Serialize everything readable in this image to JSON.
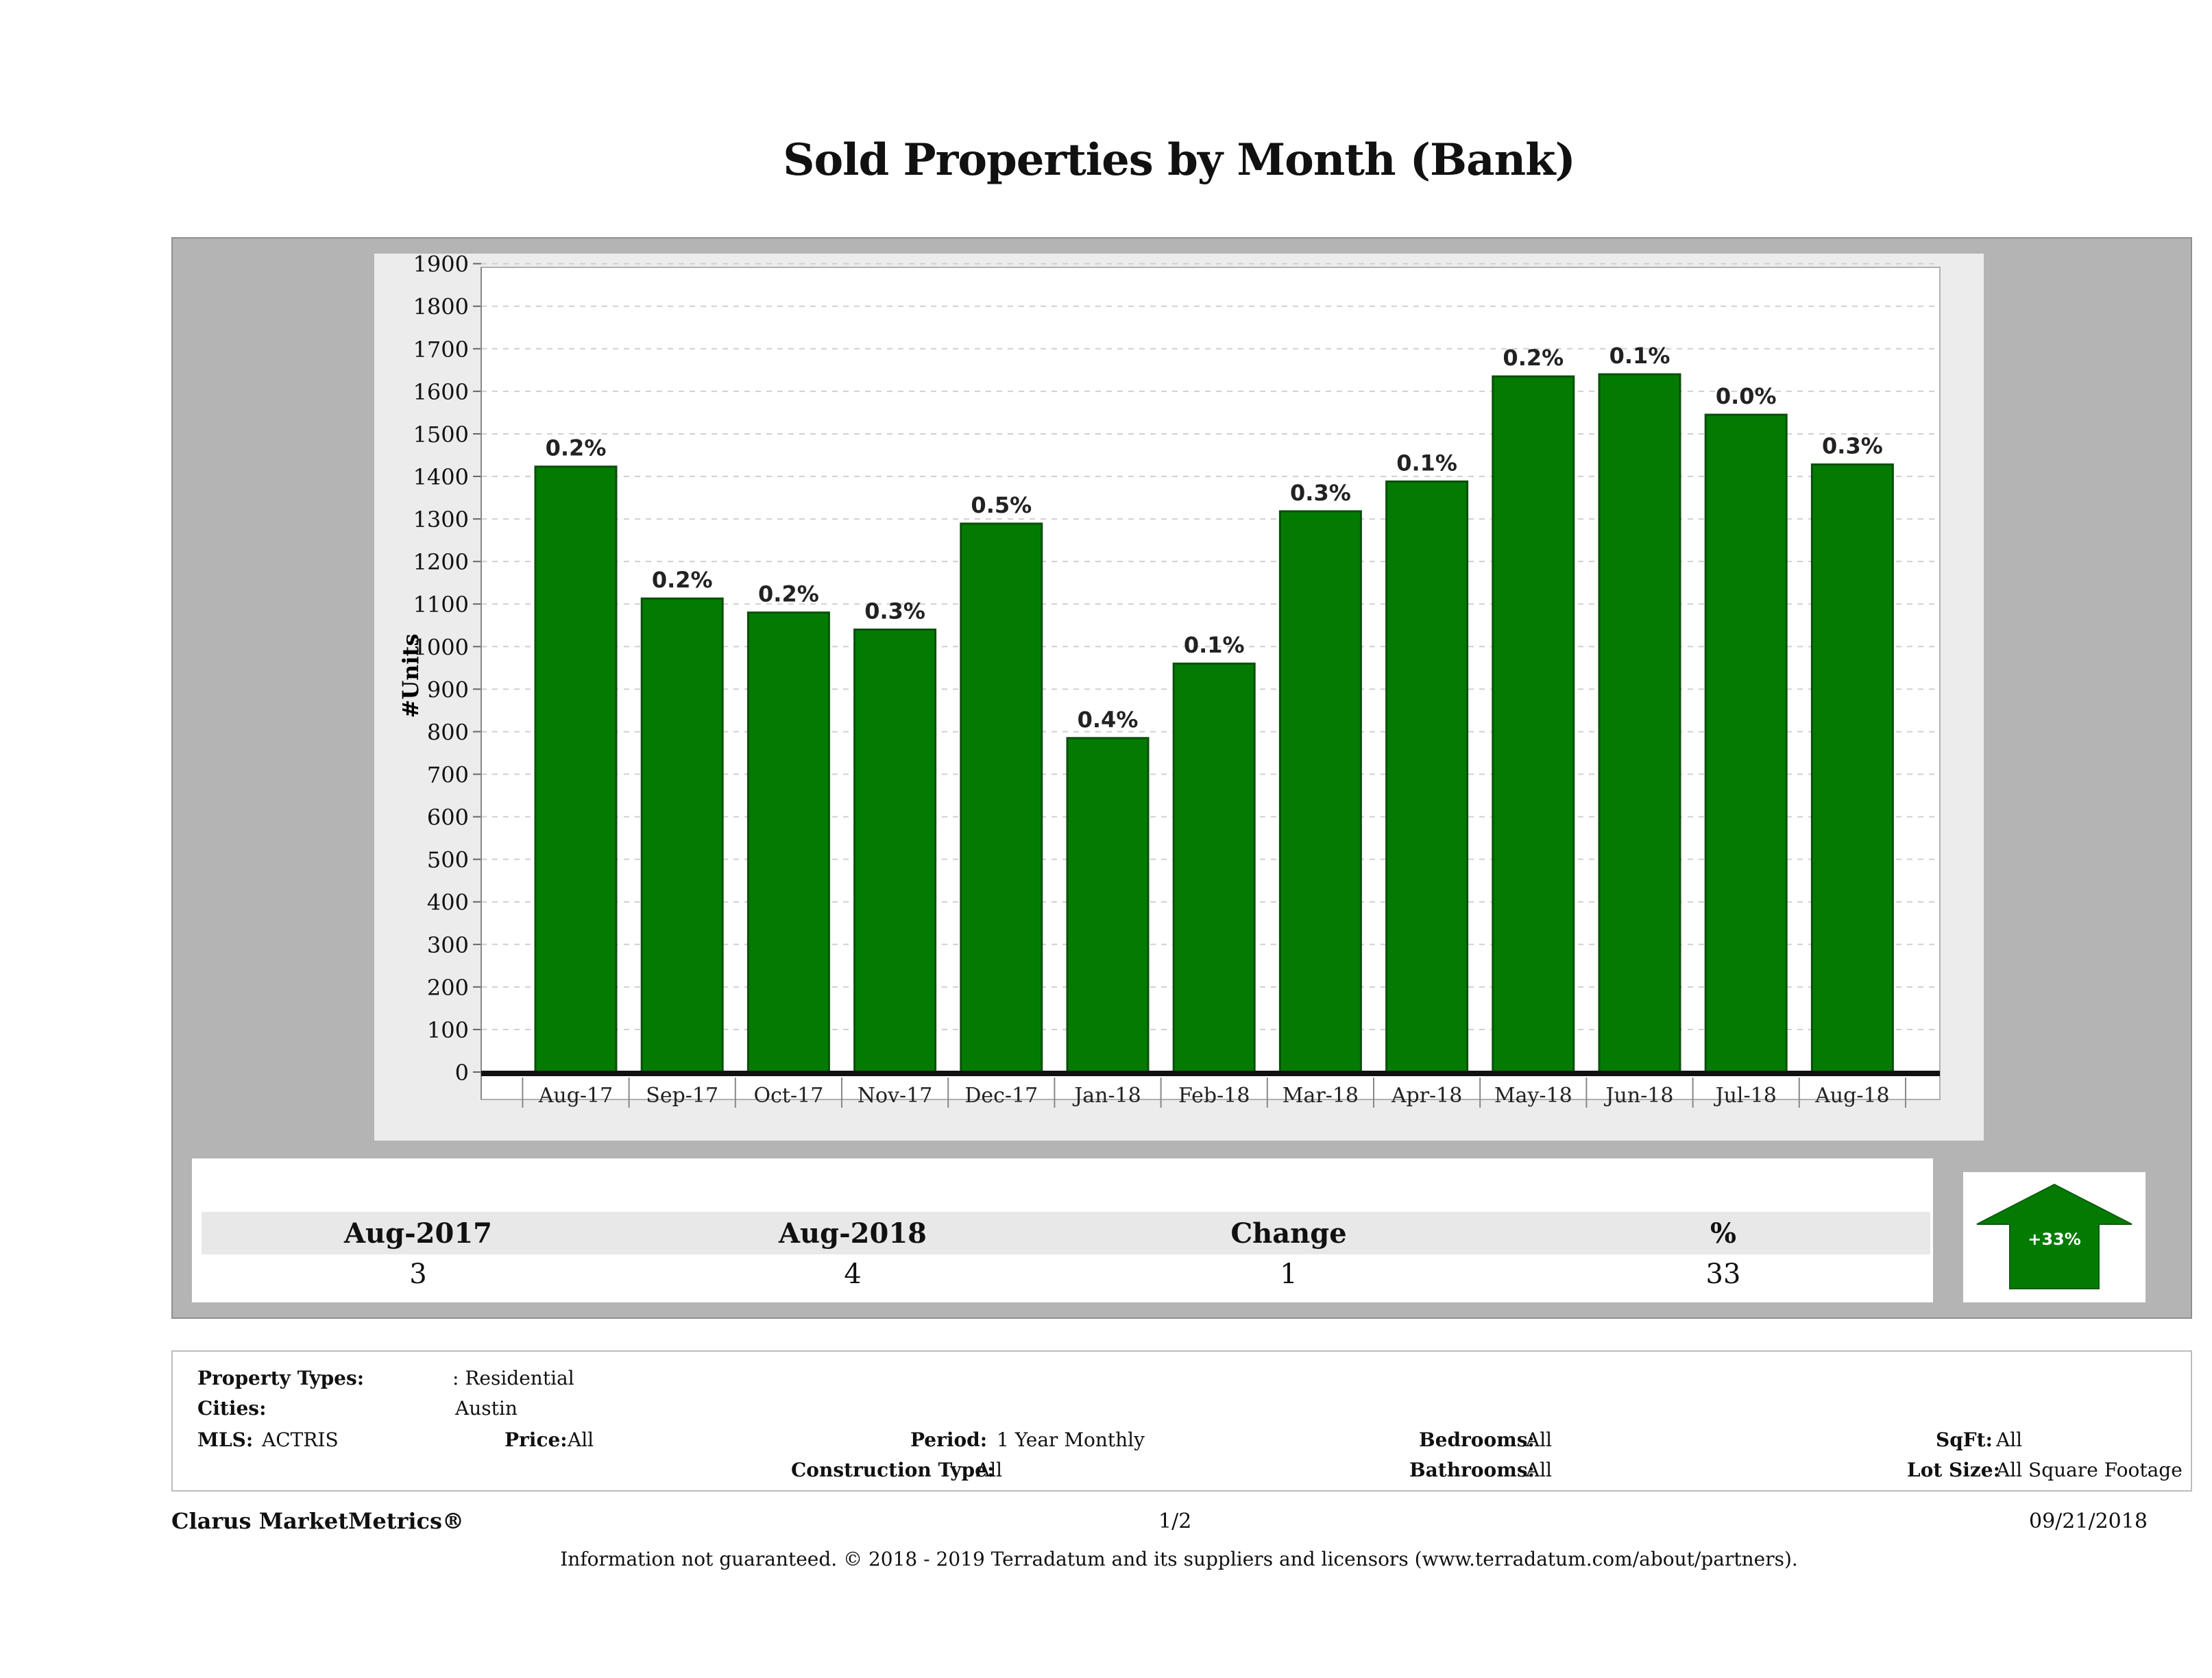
{
  "title": "Sold Properties by Month (Bank)",
  "chart_data": {
    "type": "bar",
    "title": "Sold Properties by Month (Bank)",
    "xlabel": "",
    "ylabel": "#Units",
    "ylim": [
      0,
      1950
    ],
    "yticks": [
      0,
      100,
      200,
      300,
      400,
      500,
      600,
      700,
      800,
      900,
      1000,
      1100,
      1200,
      1300,
      1400,
      1500,
      1600,
      1700,
      1800,
      1900
    ],
    "grid": true,
    "bar_color": "#037b03",
    "categories": [
      "Aug-17",
      "Sep-17",
      "Oct-17",
      "Nov-17",
      "Dec-17",
      "Jan-18",
      "Feb-18",
      "Mar-18",
      "Apr-18",
      "May-18",
      "Jun-18",
      "Jul-18",
      "Aug-18"
    ],
    "values": [
      1423,
      1113,
      1080,
      1040,
      1289,
      785,
      960,
      1318,
      1388,
      1635,
      1640,
      1545,
      1428
    ],
    "data_labels": [
      "0.2%",
      "0.2%",
      "0.2%",
      "0.3%",
      "0.5%",
      "0.4%",
      "0.1%",
      "0.3%",
      "0.1%",
      "0.2%",
      "0.1%",
      "0.0%",
      "0.3%"
    ]
  },
  "summary": {
    "headers": [
      "Aug-2017",
      "Aug-2018",
      "Change",
      "%"
    ],
    "values": [
      "3",
      "4",
      "1",
      "33"
    ],
    "badge_text": "+33%",
    "badge_color": "#037b03"
  },
  "filters": {
    "property_types_label": "Property Types:",
    "property_types_value": ": Residential",
    "cities_label": "Cities:",
    "cities_value": "Austin",
    "mls_label": "MLS:",
    "mls_value": "ACTRIS",
    "price_label": "Price:",
    "price_value": "All",
    "period_label": "Period:",
    "period_value": "1 Year Monthly",
    "construction_label": "Construction Type:",
    "construction_value": "All",
    "bedrooms_label": "Bedrooms:",
    "bedrooms_value": "All",
    "bathrooms_label": "Bathrooms:",
    "bathrooms_value": "All",
    "sqft_label": "SqFt:",
    "sqft_value": "All",
    "lot_label": "Lot Size:",
    "lot_value": "All Square Footage"
  },
  "footer": {
    "brand": "Clarus MarketMetrics®",
    "page": "1/2",
    "date": "09/21/2018",
    "disclaimer": "Information not guaranteed. © 2018 - 2019 Terradatum and its suppliers and licensors (www.terradatum.com/about/partners)."
  }
}
